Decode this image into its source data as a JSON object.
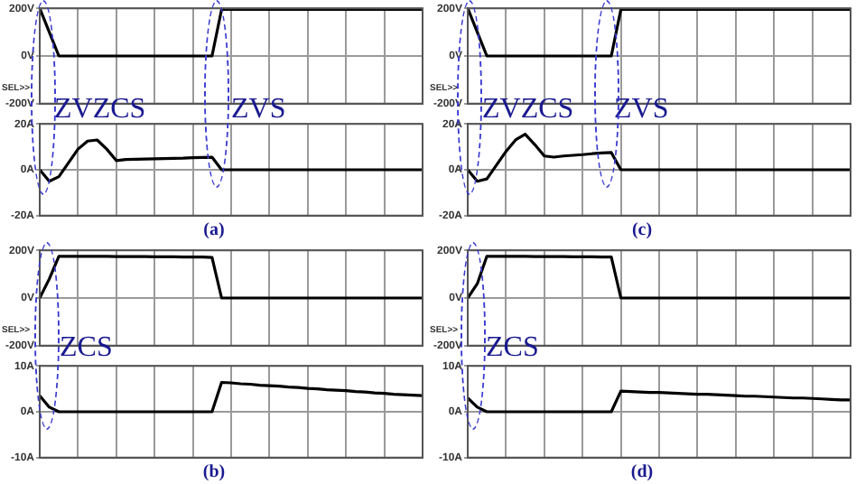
{
  "chart_data": [
    {
      "type": "line",
      "categories": [
        null,
        null,
        null,
        null,
        null,
        null,
        null,
        null,
        null,
        null,
        null,
        null,
        null,
        null,
        null,
        null,
        null,
        null,
        null,
        null,
        null,
        null,
        null,
        null,
        null,
        null,
        null,
        null,
        null,
        null,
        null,
        null,
        null,
        null,
        null,
        null,
        null,
        null,
        null,
        null,
        null
      ],
      "series": [
        {
          "color": "#000000",
          "values": [
            200,
            100,
            0,
            0,
            0,
            0,
            0,
            0,
            0,
            0,
            0,
            0,
            0,
            0,
            0,
            0,
            0,
            0,
            0,
            195,
            195,
            195,
            195,
            195,
            195,
            195,
            195,
            195,
            195,
            195,
            195,
            195,
            195,
            195,
            195,
            195,
            195,
            195,
            195,
            195,
            195
          ]
        }
      ],
      "ylim": [
        -200,
        200
      ],
      "yticks": [
        {
          "value": 200,
          "label": "200V"
        },
        {
          "value": 0,
          "label": "0V"
        },
        {
          "value": -200,
          "label": "-200V"
        }
      ],
      "tick_labels": "y",
      "grid": true,
      "marker": "none",
      "annotations": [
        "SEL>>",
        "ZVZCS",
        "ZVS"
      ]
    },
    {
      "type": "line",
      "categories": [
        null,
        null,
        null,
        null,
        null,
        null,
        null,
        null,
        null,
        null,
        null,
        null,
        null,
        null,
        null,
        null,
        null,
        null,
        null,
        null,
        null,
        null,
        null,
        null,
        null,
        null,
        null,
        null,
        null,
        null,
        null,
        null,
        null,
        null,
        null,
        null,
        null,
        null,
        null,
        null,
        null
      ],
      "series": [
        {
          "color": "#000000",
          "values": [
            0,
            -5,
            -3,
            3,
            9,
            12.5,
            13,
            9,
            4,
            4.5,
            4.6,
            4.7,
            4.8,
            4.9,
            5,
            5.1,
            5.3,
            5.4,
            5.5,
            0,
            0,
            0,
            0,
            0,
            0,
            0,
            0,
            0,
            0,
            0,
            0,
            0,
            0,
            0,
            0,
            0,
            0,
            0,
            0,
            0,
            0
          ]
        }
      ],
      "ylim": [
        -20,
        20
      ],
      "yticks": [
        {
          "value": 20,
          "label": "20A"
        },
        {
          "value": 0,
          "label": "0A"
        },
        {
          "value": -20,
          "label": "-20A"
        }
      ],
      "tick_labels": "y",
      "grid": true,
      "marker": "none",
      "annotations": [
        "(a)"
      ]
    },
    {
      "type": "line",
      "categories": [
        null,
        null,
        null,
        null,
        null,
        null,
        null,
        null,
        null,
        null,
        null,
        null,
        null,
        null,
        null,
        null,
        null,
        null,
        null,
        null,
        null,
        null,
        null,
        null,
        null,
        null,
        null,
        null,
        null,
        null,
        null,
        null,
        null,
        null,
        null,
        null,
        null,
        null,
        null,
        null,
        null
      ],
      "series": [
        {
          "color": "#000000",
          "values": [
            200,
            100,
            0,
            0,
            0,
            0,
            0,
            0,
            0,
            0,
            0,
            0,
            0,
            0,
            0,
            0,
            195,
            195,
            195,
            195,
            195,
            195,
            195,
            195,
            195,
            195,
            195,
            195,
            195,
            195,
            195,
            195,
            195,
            195,
            195,
            195,
            195,
            195,
            195,
            195,
            195
          ]
        }
      ],
      "ylim": [
        -200,
        200
      ],
      "yticks": [
        {
          "value": 200,
          "label": "200V"
        },
        {
          "value": 0,
          "label": "0V"
        },
        {
          "value": -200,
          "label": "-200V"
        }
      ],
      "tick_labels": "y",
      "grid": true,
      "marker": "none",
      "annotations": [
        "SEL>>",
        "ZVZCS",
        "ZVS"
      ]
    },
    {
      "type": "line",
      "categories": [
        null,
        null,
        null,
        null,
        null,
        null,
        null,
        null,
        null,
        null,
        null,
        null,
        null,
        null,
        null,
        null,
        null,
        null,
        null,
        null,
        null,
        null,
        null,
        null,
        null,
        null,
        null,
        null,
        null,
        null,
        null,
        null,
        null,
        null,
        null,
        null,
        null,
        null,
        null,
        null,
        null
      ],
      "series": [
        {
          "color": "#000000",
          "values": [
            0,
            -5,
            -4,
            2,
            8,
            13,
            15.5,
            11,
            6,
            5.5,
            6,
            6.3,
            6.6,
            7,
            7.3,
            7.5,
            0,
            0,
            0,
            0,
            0,
            0,
            0,
            0,
            0,
            0,
            0,
            0,
            0,
            0,
            0,
            0,
            0,
            0,
            0,
            0,
            0,
            0,
            0,
            0,
            0
          ]
        }
      ],
      "ylim": [
        -20,
        20
      ],
      "yticks": [
        {
          "value": 20,
          "label": "20A"
        },
        {
          "value": 0,
          "label": "0A"
        },
        {
          "value": -20,
          "label": "-20A"
        }
      ],
      "tick_labels": "y",
      "grid": true,
      "marker": "none",
      "annotations": [
        "(c)"
      ]
    },
    {
      "type": "line",
      "categories": [
        null,
        null,
        null,
        null,
        null,
        null,
        null,
        null,
        null,
        null,
        null,
        null,
        null,
        null,
        null,
        null,
        null,
        null,
        null,
        null,
        null,
        null,
        null,
        null,
        null,
        null,
        null,
        null,
        null,
        null,
        null,
        null,
        null,
        null,
        null,
        null,
        null,
        null,
        null,
        null,
        null
      ],
      "series": [
        {
          "color": "#000000",
          "values": [
            0,
            80,
            175,
            175,
            175,
            175,
            175,
            175,
            174,
            174,
            174,
            174,
            173,
            173,
            173,
            172,
            172,
            172,
            170,
            0,
            0,
            0,
            0,
            0,
            0,
            0,
            0,
            0,
            0,
            0,
            0,
            0,
            0,
            0,
            0,
            0,
            0,
            0,
            0,
            0,
            0
          ]
        }
      ],
      "ylim": [
        -200,
        200
      ],
      "yticks": [
        {
          "value": 200,
          "label": "200V"
        },
        {
          "value": 0,
          "label": "0V"
        },
        {
          "value": -200,
          "label": "-200V"
        }
      ],
      "tick_labels": "y",
      "grid": true,
      "marker": "none",
      "annotations": [
        "SEL>>",
        "ZCS"
      ]
    },
    {
      "type": "line",
      "categories": [
        null,
        null,
        null,
        null,
        null,
        null,
        null,
        null,
        null,
        null,
        null,
        null,
        null,
        null,
        null,
        null,
        null,
        null,
        null,
        null,
        null,
        null,
        null,
        null,
        null,
        null,
        null,
        null,
        null,
        null,
        null,
        null,
        null,
        null,
        null,
        null,
        null,
        null,
        null,
        null,
        null
      ],
      "series": [
        {
          "color": "#000000",
          "values": [
            3.5,
            1,
            0,
            0,
            0,
            0,
            0,
            0,
            0,
            0,
            0,
            0,
            0,
            0,
            0,
            0,
            0,
            0,
            0,
            6.4,
            6.3,
            6.1,
            6,
            5.8,
            5.7,
            5.6,
            5.4,
            5.3,
            5.1,
            5,
            4.8,
            4.7,
            4.6,
            4.4,
            4.3,
            4.1,
            4,
            3.8,
            3.7,
            3.6,
            3.5
          ]
        }
      ],
      "ylim": [
        -10,
        10
      ],
      "yticks": [
        {
          "value": 10,
          "label": "10A"
        },
        {
          "value": 0,
          "label": "0A"
        },
        {
          "value": -10,
          "label": "-10A"
        }
      ],
      "tick_labels": "y",
      "grid": true,
      "marker": "none",
      "annotations": [
        "(b)"
      ]
    },
    {
      "type": "line",
      "categories": [
        null,
        null,
        null,
        null,
        null,
        null,
        null,
        null,
        null,
        null,
        null,
        null,
        null,
        null,
        null,
        null,
        null,
        null,
        null,
        null,
        null,
        null,
        null,
        null,
        null,
        null,
        null,
        null,
        null,
        null,
        null,
        null,
        null,
        null,
        null,
        null,
        null,
        null,
        null,
        null,
        null
      ],
      "series": [
        {
          "color": "#000000",
          "values": [
            0,
            60,
            175,
            175,
            175,
            175,
            175,
            174,
            174,
            174,
            174,
            173,
            173,
            173,
            172,
            172,
            0,
            0,
            0,
            0,
            0,
            0,
            0,
            0,
            0,
            0,
            0,
            0,
            0,
            0,
            0,
            0,
            0,
            0,
            0,
            0,
            0,
            0,
            0,
            0,
            0
          ]
        }
      ],
      "ylim": [
        -200,
        200
      ],
      "yticks": [
        {
          "value": 200,
          "label": "200V"
        },
        {
          "value": 0,
          "label": "0V"
        },
        {
          "value": -200,
          "label": "-200V"
        }
      ],
      "tick_labels": "y",
      "grid": true,
      "marker": "none",
      "annotations": [
        "SEL>>",
        "ZCS"
      ]
    },
    {
      "type": "line",
      "categories": [
        null,
        null,
        null,
        null,
        null,
        null,
        null,
        null,
        null,
        null,
        null,
        null,
        null,
        null,
        null,
        null,
        null,
        null,
        null,
        null,
        null,
        null,
        null,
        null,
        null,
        null,
        null,
        null,
        null,
        null,
        null,
        null,
        null,
        null,
        null,
        null,
        null,
        null,
        null,
        null,
        null
      ],
      "series": [
        {
          "color": "#000000",
          "values": [
            3,
            1,
            0,
            0,
            0,
            0,
            0,
            0,
            0,
            0,
            0,
            0,
            0,
            0,
            0,
            0,
            4.5,
            4.4,
            4.3,
            4.2,
            4.2,
            4.1,
            4,
            3.9,
            3.8,
            3.8,
            3.7,
            3.6,
            3.5,
            3.4,
            3.4,
            3.3,
            3.2,
            3.1,
            3,
            3,
            2.9,
            2.8,
            2.7,
            2.6,
            2.6
          ]
        }
      ],
      "ylim": [
        -10,
        10
      ],
      "yticks": [
        {
          "value": 10,
          "label": "10A"
        },
        {
          "value": 0,
          "label": "0A"
        },
        {
          "value": -10,
          "label": "-10A"
        }
      ],
      "tick_labels": "y",
      "grid": true,
      "marker": "none",
      "annotations": [
        "(d)"
      ]
    }
  ]
}
